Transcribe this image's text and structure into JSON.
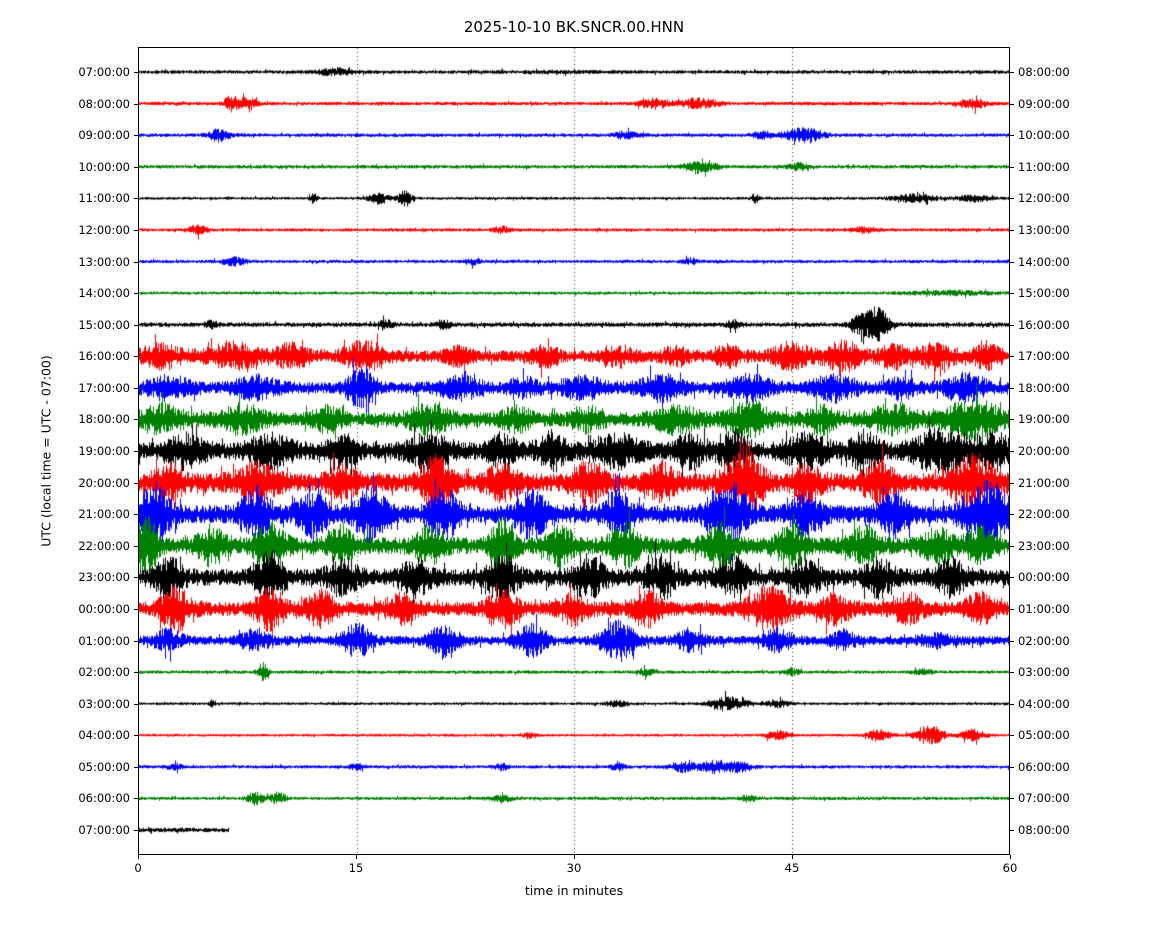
{
  "chart_data": {
    "type": "line",
    "subtype": "seismogram-helicorder-dayplot",
    "title": "2025-10-10 BK.SNCR.00.HNN",
    "xlabel": "time in minutes",
    "ylabel": "UTC (local time = UTC - 07:00)",
    "x_range_minutes": [
      0,
      60
    ],
    "x_ticks": [
      0,
      15,
      30,
      45,
      60
    ],
    "gridlines_x_minutes": [
      15,
      30,
      45
    ],
    "grid_style": "dotted-vertical",
    "legend": "none",
    "trace_color_cycle": [
      "#000000",
      "#ff0000",
      "#0000ff",
      "#008000"
    ],
    "rows": [
      {
        "left": "07:00:00",
        "right": "08:00:00",
        "color": "#000000",
        "base": 1.4,
        "bursts": [
          [
            13.5,
            1.2,
            2.6
          ],
          [
            29,
            4,
            0.4
          ]
        ]
      },
      {
        "left": "08:00:00",
        "right": "09:00:00",
        "color": "#ff0000",
        "base": 1.4,
        "bursts": [
          [
            6.3,
            0.5,
            6
          ],
          [
            7.5,
            0.6,
            5
          ],
          [
            35.5,
            1,
            3.5
          ],
          [
            38.5,
            1.4,
            3.5
          ],
          [
            57.5,
            0.9,
            3.5
          ]
        ]
      },
      {
        "left": "09:00:00",
        "right": "10:00:00",
        "color": "#0000ff",
        "base": 1.4,
        "bursts": [
          [
            5.5,
            0.7,
            4.5
          ],
          [
            33.5,
            0.8,
            2.5
          ],
          [
            43,
            0.8,
            2.5
          ],
          [
            45.8,
            1.3,
            5
          ]
        ]
      },
      {
        "left": "10:00:00",
        "right": "11:00:00",
        "color": "#008000",
        "base": 1.4,
        "bursts": [
          [
            38.7,
            1.0,
            5.5
          ],
          [
            45.5,
            0.7,
            2.8
          ]
        ]
      },
      {
        "left": "11:00:00",
        "right": "12:00:00",
        "color": "#000000",
        "base": 1.1,
        "bursts": [
          [
            12,
            0.25,
            3.5
          ],
          [
            16.5,
            0.7,
            4
          ],
          [
            18.3,
            0.5,
            5.5
          ],
          [
            42.5,
            0.3,
            3.5
          ],
          [
            53.5,
            1.5,
            2.8
          ],
          [
            57.5,
            1.2,
            2.4
          ]
        ]
      },
      {
        "left": "12:00:00",
        "right": "13:00:00",
        "color": "#ff0000",
        "base": 1.3,
        "bursts": [
          [
            4,
            0.6,
            3.2
          ],
          [
            25,
            0.6,
            2.6
          ],
          [
            50,
            0.9,
            2.2
          ]
        ]
      },
      {
        "left": "13:00:00",
        "right": "14:00:00",
        "color": "#0000ff",
        "base": 1.3,
        "bursts": [
          [
            6.5,
            0.8,
            3
          ],
          [
            23,
            0.5,
            2.2
          ],
          [
            38,
            0.5,
            2.2
          ]
        ]
      },
      {
        "left": "14:00:00",
        "right": "15:00:00",
        "color": "#008000",
        "base": 1.2,
        "bursts": [
          [
            56,
            3,
            1.4
          ]
        ]
      },
      {
        "left": "15:00:00",
        "right": "16:00:00",
        "color": "#000000",
        "base": 1.8,
        "bursts": [
          [
            5,
            0.4,
            3
          ],
          [
            17,
            0.5,
            3
          ],
          [
            21,
            0.4,
            3
          ],
          [
            41,
            0.5,
            3
          ],
          [
            49.5,
            0.5,
            5
          ],
          [
            50.8,
            0.9,
            13
          ]
        ]
      },
      {
        "left": "16:00:00",
        "right": "17:00:00",
        "color": "#ff0000",
        "base": 4.5,
        "bursts": [
          [
            1.5,
            1.5,
            7
          ],
          [
            6.5,
            1.8,
            8
          ],
          [
            10.5,
            1.2,
            7
          ],
          [
            15.5,
            1.4,
            9
          ],
          [
            22,
            1,
            5
          ],
          [
            28,
            1,
            6
          ],
          [
            33,
            1,
            6
          ],
          [
            37,
            1,
            5
          ],
          [
            40.5,
            1,
            6
          ],
          [
            45,
            1.3,
            8
          ],
          [
            48.5,
            1.3,
            9
          ],
          [
            52,
            1,
            7
          ],
          [
            55,
            1.3,
            8
          ],
          [
            58.5,
            1,
            7
          ]
        ]
      },
      {
        "left": "17:00:00",
        "right": "18:00:00",
        "color": "#0000ff",
        "base": 4.5,
        "bursts": [
          [
            2,
            1.5,
            7
          ],
          [
            8,
            1.5,
            7
          ],
          [
            15.3,
            0.9,
            15
          ],
          [
            22,
            1.5,
            7
          ],
          [
            26.5,
            1,
            6
          ],
          [
            30.5,
            1.5,
            7
          ],
          [
            36,
            1.5,
            8
          ],
          [
            42,
            1.5,
            8
          ],
          [
            48,
            1.5,
            8
          ],
          [
            52.5,
            1,
            7
          ],
          [
            57,
            1.5,
            8
          ]
        ]
      },
      {
        "left": "18:00:00",
        "right": "19:00:00",
        "color": "#008000",
        "base": 5.5,
        "bursts": [
          [
            1.5,
            1.5,
            8
          ],
          [
            7,
            1.5,
            8
          ],
          [
            13,
            1,
            7
          ],
          [
            20,
            1.5,
            8
          ],
          [
            26,
            1,
            7
          ],
          [
            31,
            1,
            7
          ],
          [
            37,
            1.5,
            8
          ],
          [
            42,
            1.5,
            11
          ],
          [
            47,
            1,
            8
          ],
          [
            52,
            1.5,
            9
          ],
          [
            57.5,
            2,
            12
          ]
        ]
      },
      {
        "left": "19:00:00",
        "right": "20:00:00",
        "color": "#000000",
        "base": 6.5,
        "bursts": [
          [
            3,
            1.5,
            9
          ],
          [
            9,
            1.5,
            10
          ],
          [
            14,
            1,
            9
          ],
          [
            20,
            1.5,
            10
          ],
          [
            25,
            1,
            9
          ],
          [
            28.5,
            1,
            11
          ],
          [
            33,
            1.5,
            10
          ],
          [
            38,
            1,
            10
          ],
          [
            41,
            1,
            12
          ],
          [
            46,
            1.5,
            10
          ],
          [
            50,
            1,
            12
          ],
          [
            55.5,
            2,
            14
          ],
          [
            59,
            1,
            10
          ]
        ]
      },
      {
        "left": "20:00:00",
        "right": "21:00:00",
        "color": "#ff0000",
        "base": 7,
        "bursts": [
          [
            2,
            1,
            10
          ],
          [
            8,
            1.5,
            11
          ],
          [
            14,
            1,
            10
          ],
          [
            20.5,
            1,
            18
          ],
          [
            25,
            1,
            11
          ],
          [
            31,
            1,
            15
          ],
          [
            36,
            1,
            11
          ],
          [
            41.7,
            1.2,
            26
          ],
          [
            46,
            1,
            11
          ],
          [
            51,
            1,
            12
          ],
          [
            57.5,
            1.5,
            17
          ]
        ]
      },
      {
        "left": "21:00:00",
        "right": "22:00:00",
        "color": "#0000ff",
        "base": 7,
        "bursts": [
          [
            1,
            1,
            22
          ],
          [
            8,
            1,
            16
          ],
          [
            12,
            1,
            13
          ],
          [
            16,
            1,
            18
          ],
          [
            21,
            1,
            16
          ],
          [
            27,
            1,
            15
          ],
          [
            33,
            1,
            13
          ],
          [
            40.5,
            1.2,
            23
          ],
          [
            46,
            1,
            13
          ],
          [
            52,
            1,
            13
          ],
          [
            58.5,
            1.5,
            20
          ]
        ]
      },
      {
        "left": "22:00:00",
        "right": "23:00:00",
        "color": "#008000",
        "base": 6.5,
        "bursts": [
          [
            0.5,
            0.8,
            18
          ],
          [
            5,
            1,
            11
          ],
          [
            9,
            1,
            15
          ],
          [
            14,
            1,
            11
          ],
          [
            20,
            1,
            11
          ],
          [
            25,
            0.8,
            20
          ],
          [
            29,
            1,
            11
          ],
          [
            33.5,
            1,
            13
          ],
          [
            40,
            1,
            15
          ],
          [
            45,
            1,
            13
          ],
          [
            50,
            1,
            11
          ],
          [
            55,
            1,
            11
          ],
          [
            58,
            1,
            11
          ]
        ]
      },
      {
        "left": "23:00:00",
        "right": "00:00:00",
        "color": "#000000",
        "base": 6.5,
        "bursts": [
          [
            2,
            1,
            11
          ],
          [
            9,
            1,
            16
          ],
          [
            14,
            1,
            11
          ],
          [
            19,
            1,
            11
          ],
          [
            25,
            1,
            15
          ],
          [
            31,
            1,
            13
          ],
          [
            36,
            1,
            13
          ],
          [
            41,
            1,
            11
          ],
          [
            46,
            1,
            11
          ],
          [
            51,
            1,
            11
          ],
          [
            56,
            1,
            11
          ]
        ]
      },
      {
        "left": "00:00:00",
        "right": "01:00:00",
        "color": "#ff0000",
        "base": 5.5,
        "bursts": [
          [
            2.5,
            1,
            14
          ],
          [
            9,
            1,
            13
          ],
          [
            12.5,
            1,
            11
          ],
          [
            18,
            1,
            9
          ],
          [
            25,
            1,
            13
          ],
          [
            30,
            1,
            9
          ],
          [
            35,
            1,
            11
          ],
          [
            43.5,
            1.5,
            13
          ],
          [
            48,
            1,
            9
          ],
          [
            53,
            1,
            9
          ],
          [
            58,
            1,
            9
          ]
        ]
      },
      {
        "left": "01:00:00",
        "right": "02:00:00",
        "color": "#0000ff",
        "base": 3.5,
        "bursts": [
          [
            2,
            1,
            7
          ],
          [
            8,
            1,
            7
          ],
          [
            15,
            1,
            11
          ],
          [
            21,
            1,
            11
          ],
          [
            27,
            1,
            11
          ],
          [
            33,
            1.2,
            13
          ],
          [
            38,
            1,
            7
          ],
          [
            44,
            1,
            7
          ],
          [
            48.5,
            0.8,
            7
          ],
          [
            55,
            1.2,
            4
          ]
        ]
      },
      {
        "left": "02:00:00",
        "right": "03:00:00",
        "color": "#008000",
        "base": 1.3,
        "bursts": [
          [
            8.5,
            0.35,
            7
          ],
          [
            35,
            0.5,
            2.6
          ],
          [
            45,
            0.5,
            2.6
          ],
          [
            54,
            0.6,
            2.6
          ]
        ]
      },
      {
        "left": "03:00:00",
        "right": "04:00:00",
        "color": "#000000",
        "base": 1.1,
        "bursts": [
          [
            5,
            0.2,
            2.6
          ],
          [
            33,
            0.8,
            2.2
          ],
          [
            40.6,
            1.2,
            5.5
          ],
          [
            44,
            0.8,
            2.6
          ]
        ]
      },
      {
        "left": "04:00:00",
        "right": "05:00:00",
        "color": "#ff0000",
        "base": 1.1,
        "bursts": [
          [
            27,
            0.5,
            1.8
          ],
          [
            44,
            0.8,
            3.5
          ],
          [
            51,
            0.8,
            4.5
          ],
          [
            54.5,
            1,
            7
          ],
          [
            57.5,
            0.8,
            4.5
          ]
        ]
      },
      {
        "left": "05:00:00",
        "right": "06:00:00",
        "color": "#0000ff",
        "base": 1.3,
        "bursts": [
          [
            2.5,
            0.5,
            2.2
          ],
          [
            15,
            0.5,
            2.2
          ],
          [
            25,
            0.5,
            2.2
          ],
          [
            33,
            0.5,
            2.6
          ],
          [
            37.5,
            1,
            3.5
          ],
          [
            39.8,
            1,
            4.5
          ],
          [
            41.5,
            0.8,
            3.5
          ]
        ]
      },
      {
        "left": "06:00:00",
        "right": "07:00:00",
        "color": "#008000",
        "base": 1.3,
        "bursts": [
          [
            8,
            0.6,
            4.5
          ],
          [
            9.6,
            0.5,
            4.5
          ],
          [
            25,
            0.6,
            2.6
          ],
          [
            42,
            0.5,
            2.2
          ]
        ]
      },
      {
        "left": "07:00:00",
        "right": "08:00:00",
        "color": "#000000",
        "base": 1.8,
        "bursts": [],
        "end_min": 6.2
      }
    ]
  }
}
